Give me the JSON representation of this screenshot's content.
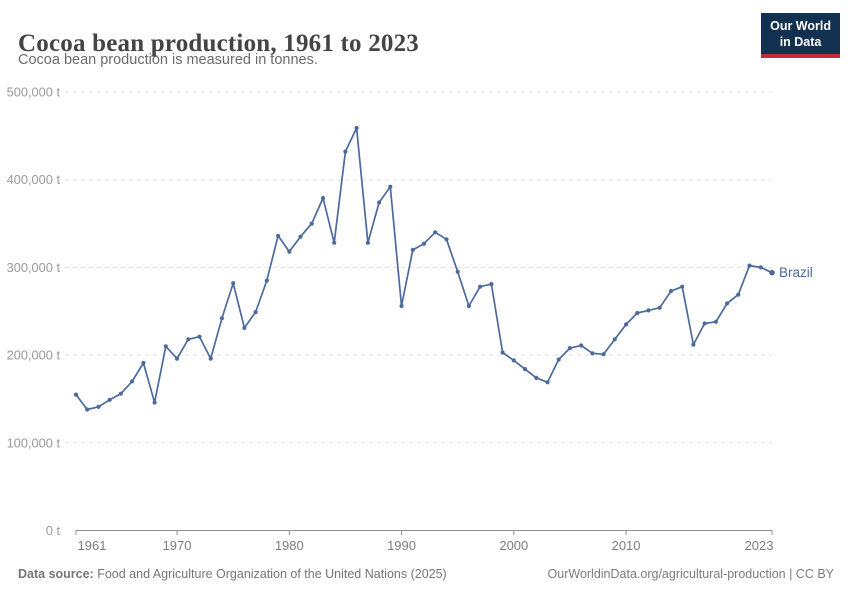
{
  "header": {
    "title": "Cocoa bean production, 1961 to 2023",
    "subtitle": "Cocoa bean production is measured in tonnes.",
    "logo": {
      "line1": "Our World",
      "line2": "in Data",
      "bg_color": "#12304f",
      "accent_color": "#c0293e"
    }
  },
  "chart_data": {
    "type": "line",
    "title": "Cocoa bean production, 1961 to 2023",
    "unit": "tonnes",
    "grid": true,
    "legend_position": "end-of-line",
    "xlim": [
      1961,
      2023
    ],
    "ylim": [
      0,
      500000
    ],
    "x_ticks": [
      1961,
      1970,
      1980,
      1990,
      2000,
      2010,
      2023
    ],
    "y_ticks": [
      0,
      100000,
      200000,
      300000,
      400000,
      500000
    ],
    "y_tick_labels": [
      "0 t",
      "100,000 t",
      "200,000 t",
      "300,000 t",
      "400,000 t",
      "500,000 t"
    ],
    "series": [
      {
        "name": "Brazil",
        "color": "#4c6a9c",
        "x": [
          1961,
          1962,
          1963,
          1964,
          1965,
          1966,
          1967,
          1968,
          1969,
          1970,
          1971,
          1972,
          1973,
          1974,
          1975,
          1976,
          1977,
          1978,
          1979,
          1980,
          1981,
          1982,
          1983,
          1984,
          1985,
          1986,
          1987,
          1988,
          1989,
          1990,
          1991,
          1992,
          1993,
          1994,
          1995,
          1996,
          1997,
          1998,
          1999,
          2000,
          2001,
          2002,
          2003,
          2004,
          2005,
          2006,
          2007,
          2008,
          2009,
          2010,
          2011,
          2012,
          2013,
          2014,
          2015,
          2016,
          2017,
          2018,
          2019,
          2020,
          2021,
          2022,
          2023
        ],
        "values": [
          155000,
          138000,
          141000,
          149000,
          156000,
          170000,
          191000,
          146000,
          210000,
          196000,
          218000,
          221000,
          196000,
          242000,
          282000,
          231000,
          249000,
          285000,
          336000,
          318000,
          335000,
          350000,
          379000,
          328000,
          432000,
          459000,
          328000,
          374000,
          392000,
          256000,
          320000,
          327000,
          340000,
          332000,
          295000,
          256000,
          278000,
          281000,
          203000,
          194000,
          184000,
          174000,
          169000,
          195000,
          208000,
          211000,
          202000,
          201000,
          218000,
          235000,
          248000,
          251000,
          254000,
          273000,
          278000,
          212000,
          236000,
          238000,
          259000,
          269000,
          302000,
          300000,
          294000
        ]
      }
    ],
    "colors": {
      "grid": "#e0e0e0",
      "axis": "#8f8f8f",
      "y_tick_text": "#9a9a9a",
      "x_tick_text": "#7d7d7d"
    }
  },
  "footer": {
    "source_label": "Data source:",
    "source_text": " Food and Agriculture Organization of the United Nations (2025)",
    "link_text": "OurWorldinData.org/agricultural-production | CC BY"
  }
}
